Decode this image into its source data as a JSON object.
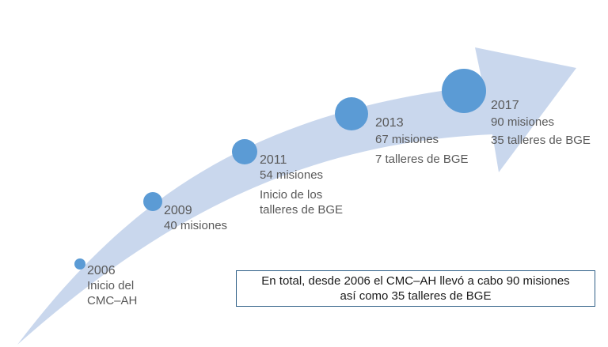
{
  "colors": {
    "arrow": "#c9d7ed",
    "dot": "#5b9bd5",
    "text": "#595959",
    "box_border": "#2e5f87"
  },
  "milestones": [
    {
      "year": "2006",
      "lines": [
        "Inicio del",
        "CMC–AH"
      ],
      "size": "smallest"
    },
    {
      "year": "2009",
      "lines": [
        "40 misiones"
      ],
      "size": "small"
    },
    {
      "year": "2011",
      "lines": [
        "54 misiones",
        "Inicio de los",
        "talleres de BGE"
      ],
      "size": "medium"
    },
    {
      "year": "2013",
      "lines": [
        "67 misiones",
        "7 talleres de BGE"
      ],
      "size": "large"
    },
    {
      "year": "2017",
      "lines": [
        "90 misiones",
        "35 talleres de BGE"
      ],
      "size": "largest"
    }
  ],
  "summary": {
    "line1": "En total, desde 2006 el CMC–AH llevó a cabo 90 misiones",
    "line2": "así como 35 talleres de BGE"
  }
}
